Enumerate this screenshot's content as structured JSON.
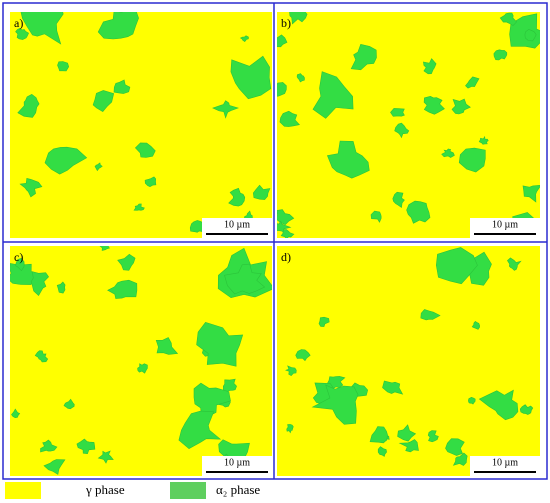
{
  "panels": [
    {
      "label": "a)",
      "scale_bar": "10 µm"
    },
    {
      "label": "b)",
      "scale_bar": "10 µm"
    },
    {
      "label": "c)",
      "scale_bar": "10 µm"
    },
    {
      "label": "d)",
      "scale_bar": "10 µm"
    }
  ],
  "legend": [
    {
      "label": "γ phase"
    },
    {
      "label": "α₂ phase"
    }
  ]
}
